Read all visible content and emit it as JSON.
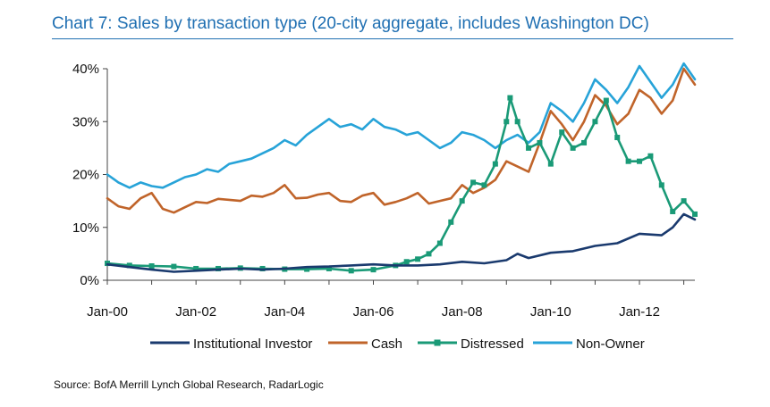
{
  "title": "Chart 7: Sales by transaction type (20-city aggregate, includes Washington DC)",
  "source": "Source: BofA Merrill Lynch Global Research, RadarLogic",
  "chart_data": {
    "type": "line",
    "title": "Chart 7: Sales by transaction type (20-city aggregate, includes Washington DC)",
    "xlabel": "",
    "ylabel": "",
    "ylim": [
      0,
      40
    ],
    "xlim": [
      "2000-01",
      "2013-04"
    ],
    "y_ticks": [
      "0%",
      "10%",
      "20%",
      "30%",
      "40%"
    ],
    "x_tick_labels": [
      "Jan-00",
      "Jan-02",
      "Jan-04",
      "Jan-06",
      "Jan-08",
      "Jan-10",
      "Jan-12"
    ],
    "grid": false,
    "legend_position": "bottom",
    "series": [
      {
        "name": "Institutional Investor",
        "color": "#1a3a6e",
        "marker": "none",
        "points": [
          [
            "2000-01",
            3.0
          ],
          [
            "2000-07",
            2.5
          ],
          [
            "2001-01",
            2.0
          ],
          [
            "2001-07",
            1.6
          ],
          [
            "2002-01",
            1.8
          ],
          [
            "2002-07",
            2.0
          ],
          [
            "2003-01",
            2.2
          ],
          [
            "2003-07",
            2.0
          ],
          [
            "2004-01",
            2.2
          ],
          [
            "2004-07",
            2.5
          ],
          [
            "2005-01",
            2.6
          ],
          [
            "2005-07",
            2.8
          ],
          [
            "2006-01",
            3.0
          ],
          [
            "2006-07",
            2.8
          ],
          [
            "2007-01",
            2.8
          ],
          [
            "2007-07",
            3.0
          ],
          [
            "2008-01",
            3.5
          ],
          [
            "2008-07",
            3.2
          ],
          [
            "2009-01",
            3.8
          ],
          [
            "2009-04",
            5.0
          ],
          [
            "2009-07",
            4.2
          ],
          [
            "2010-01",
            5.2
          ],
          [
            "2010-07",
            5.5
          ],
          [
            "2011-01",
            6.5
          ],
          [
            "2011-07",
            7.0
          ],
          [
            "2012-01",
            8.8
          ],
          [
            "2012-07",
            8.5
          ],
          [
            "2012-10",
            10.0
          ],
          [
            "2013-01",
            12.5
          ],
          [
            "2013-04",
            11.5
          ]
        ]
      },
      {
        "name": "Cash",
        "color": "#c0642a",
        "marker": "none",
        "points": [
          [
            "2000-01",
            15.5
          ],
          [
            "2000-04",
            14.0
          ],
          [
            "2000-07",
            13.5
          ],
          [
            "2000-10",
            15.5
          ],
          [
            "2001-01",
            16.5
          ],
          [
            "2001-04",
            13.5
          ],
          [
            "2001-07",
            12.8
          ],
          [
            "2001-10",
            13.8
          ],
          [
            "2002-01",
            14.8
          ],
          [
            "2002-04",
            14.6
          ],
          [
            "2002-07",
            15.4
          ],
          [
            "2002-10",
            15.2
          ],
          [
            "2003-01",
            15.0
          ],
          [
            "2003-04",
            16.0
          ],
          [
            "2003-07",
            15.8
          ],
          [
            "2003-10",
            16.5
          ],
          [
            "2004-01",
            18.0
          ],
          [
            "2004-04",
            15.5
          ],
          [
            "2004-07",
            15.6
          ],
          [
            "2004-10",
            16.2
          ],
          [
            "2005-01",
            16.5
          ],
          [
            "2005-04",
            15.0
          ],
          [
            "2005-07",
            14.8
          ],
          [
            "2005-10",
            16.0
          ],
          [
            "2006-01",
            16.5
          ],
          [
            "2006-04",
            14.3
          ],
          [
            "2006-07",
            14.8
          ],
          [
            "2006-10",
            15.5
          ],
          [
            "2007-01",
            16.5
          ],
          [
            "2007-04",
            14.5
          ],
          [
            "2007-07",
            15.0
          ],
          [
            "2007-10",
            15.5
          ],
          [
            "2008-01",
            18.0
          ],
          [
            "2008-04",
            16.5
          ],
          [
            "2008-07",
            17.5
          ],
          [
            "2008-10",
            19.0
          ],
          [
            "2009-01",
            22.5
          ],
          [
            "2009-04",
            21.5
          ],
          [
            "2009-07",
            20.5
          ],
          [
            "2009-10",
            26.0
          ],
          [
            "2010-01",
            32.0
          ],
          [
            "2010-04",
            29.5
          ],
          [
            "2010-07",
            26.5
          ],
          [
            "2010-10",
            30.0
          ],
          [
            "2011-01",
            35.0
          ],
          [
            "2011-04",
            33.0
          ],
          [
            "2011-07",
            29.5
          ],
          [
            "2011-10",
            31.5
          ],
          [
            "2012-01",
            36.0
          ],
          [
            "2012-04",
            34.5
          ],
          [
            "2012-07",
            31.5
          ],
          [
            "2012-10",
            34.0
          ],
          [
            "2013-01",
            40.0
          ],
          [
            "2013-04",
            37.0
          ]
        ]
      },
      {
        "name": "Distressed",
        "color": "#1a9a77",
        "marker": "square",
        "points": [
          [
            "2000-01",
            3.2
          ],
          [
            "2000-07",
            2.8
          ],
          [
            "2001-01",
            2.7
          ],
          [
            "2001-07",
            2.6
          ],
          [
            "2002-01",
            2.2
          ],
          [
            "2002-07",
            2.2
          ],
          [
            "2003-01",
            2.3
          ],
          [
            "2003-07",
            2.2
          ],
          [
            "2004-01",
            2.1
          ],
          [
            "2004-07",
            2.1
          ],
          [
            "2005-01",
            2.2
          ],
          [
            "2005-07",
            1.8
          ],
          [
            "2006-01",
            2.0
          ],
          [
            "2006-07",
            2.8
          ],
          [
            "2006-10",
            3.5
          ],
          [
            "2007-01",
            4.0
          ],
          [
            "2007-04",
            5.0
          ],
          [
            "2007-07",
            7.0
          ],
          [
            "2007-10",
            11.0
          ],
          [
            "2008-01",
            15.0
          ],
          [
            "2008-04",
            18.5
          ],
          [
            "2008-07",
            18.0
          ],
          [
            "2008-10",
            22.0
          ],
          [
            "2009-01",
            30.0
          ],
          [
            "2009-02",
            34.5
          ],
          [
            "2009-04",
            30.0
          ],
          [
            "2009-07",
            25.0
          ],
          [
            "2009-10",
            26.0
          ],
          [
            "2010-01",
            22.0
          ],
          [
            "2010-04",
            28.0
          ],
          [
            "2010-07",
            25.0
          ],
          [
            "2010-10",
            26.0
          ],
          [
            "2011-01",
            30.0
          ],
          [
            "2011-04",
            34.0
          ],
          [
            "2011-07",
            27.0
          ],
          [
            "2011-10",
            22.5
          ],
          [
            "2012-01",
            22.5
          ],
          [
            "2012-04",
            23.5
          ],
          [
            "2012-07",
            18.0
          ],
          [
            "2012-10",
            13.0
          ],
          [
            "2013-01",
            15.0
          ],
          [
            "2013-04",
            12.5
          ]
        ]
      },
      {
        "name": "Non-Owner",
        "color": "#27a3d8",
        "marker": "none",
        "points": [
          [
            "2000-01",
            20.0
          ],
          [
            "2000-04",
            18.5
          ],
          [
            "2000-07",
            17.5
          ],
          [
            "2000-10",
            18.5
          ],
          [
            "2001-01",
            17.8
          ],
          [
            "2001-04",
            17.5
          ],
          [
            "2001-07",
            18.5
          ],
          [
            "2001-10",
            19.5
          ],
          [
            "2002-01",
            20.0
          ],
          [
            "2002-04",
            21.0
          ],
          [
            "2002-07",
            20.5
          ],
          [
            "2002-10",
            22.0
          ],
          [
            "2003-01",
            22.5
          ],
          [
            "2003-04",
            23.0
          ],
          [
            "2003-07",
            24.0
          ],
          [
            "2003-10",
            25.0
          ],
          [
            "2004-01",
            26.5
          ],
          [
            "2004-04",
            25.5
          ],
          [
            "2004-07",
            27.5
          ],
          [
            "2004-10",
            29.0
          ],
          [
            "2005-01",
            30.5
          ],
          [
            "2005-04",
            29.0
          ],
          [
            "2005-07",
            29.5
          ],
          [
            "2005-10",
            28.5
          ],
          [
            "2006-01",
            30.5
          ],
          [
            "2006-04",
            29.0
          ],
          [
            "2006-07",
            28.5
          ],
          [
            "2006-10",
            27.5
          ],
          [
            "2007-01",
            28.0
          ],
          [
            "2007-04",
            26.5
          ],
          [
            "2007-07",
            25.0
          ],
          [
            "2007-10",
            26.0
          ],
          [
            "2008-01",
            28.0
          ],
          [
            "2008-04",
            27.5
          ],
          [
            "2008-07",
            26.5
          ],
          [
            "2008-10",
            25.0
          ],
          [
            "2009-01",
            26.5
          ],
          [
            "2009-04",
            27.5
          ],
          [
            "2009-07",
            26.0
          ],
          [
            "2009-10",
            28.0
          ],
          [
            "2010-01",
            33.5
          ],
          [
            "2010-04",
            32.0
          ],
          [
            "2010-07",
            30.0
          ],
          [
            "2010-10",
            33.5
          ],
          [
            "2011-01",
            38.0
          ],
          [
            "2011-04",
            36.0
          ],
          [
            "2011-07",
            33.5
          ],
          [
            "2011-10",
            36.5
          ],
          [
            "2012-01",
            40.5
          ],
          [
            "2012-04",
            37.5
          ],
          [
            "2012-07",
            34.5
          ],
          [
            "2012-10",
            37.0
          ],
          [
            "2013-01",
            41.0
          ],
          [
            "2013-04",
            38.0
          ]
        ]
      }
    ]
  }
}
